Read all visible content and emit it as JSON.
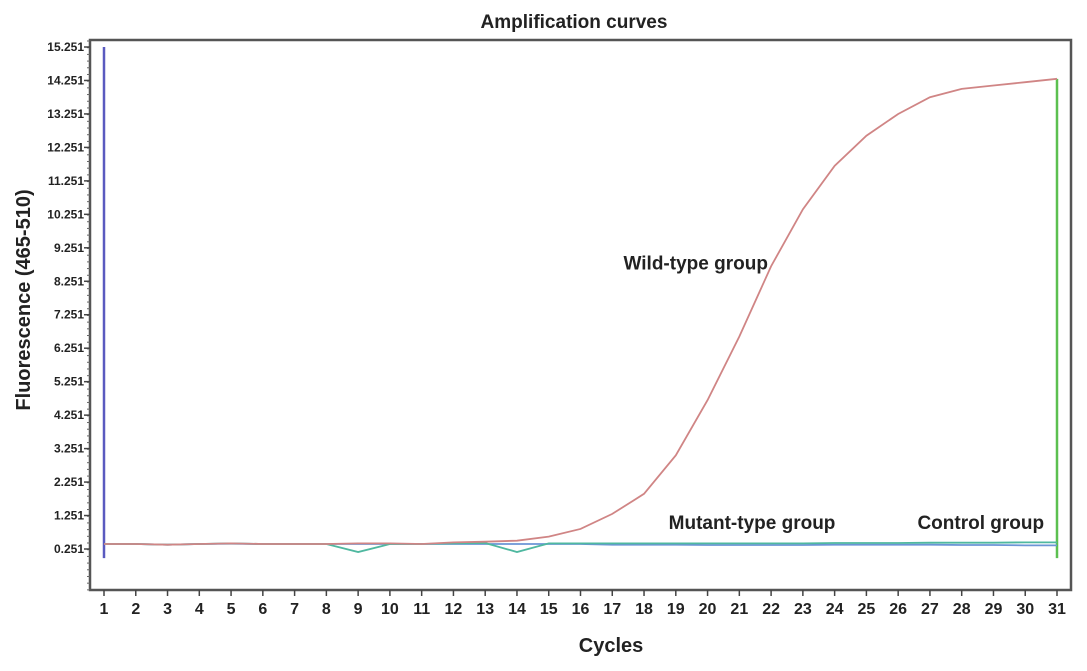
{
  "chart_data": {
    "type": "line",
    "title": "Amplification curves",
    "xlabel": "Cycles",
    "ylabel": "Fluorescence (465-510)",
    "xlim": [
      0.5,
      31.5
    ],
    "ylim": [
      -0.97,
      15.46
    ],
    "x_ticks": [
      1,
      2,
      3,
      4,
      5,
      6,
      7,
      8,
      9,
      10,
      11,
      12,
      13,
      14,
      15,
      16,
      17,
      18,
      19,
      20,
      21,
      22,
      23,
      24,
      25,
      26,
      27,
      28,
      29,
      30,
      31
    ],
    "y_ticks": [
      0.251,
      1.251,
      2.251,
      3.251,
      4.251,
      5.251,
      6.251,
      7.251,
      8.251,
      9.251,
      10.251,
      11.251,
      12.251,
      13.251,
      14.251,
      15.251
    ],
    "y_tick_labels": [
      "0.251",
      "1.251",
      "2.251",
      "3.251",
      "4.251",
      "5.251",
      "6.251",
      "7.251",
      "8.251",
      "9.251",
      "10.251",
      "11.251",
      "12.251",
      "13.251",
      "14.251",
      "15.251"
    ],
    "grid": false,
    "x": [
      1,
      2,
      3,
      4,
      5,
      6,
      7,
      8,
      9,
      10,
      11,
      12,
      13,
      14,
      15,
      16,
      17,
      18,
      19,
      20,
      21,
      22,
      23,
      24,
      25,
      26,
      27,
      28,
      29,
      30,
      31
    ],
    "series": [
      {
        "name": "Wild-type group",
        "color": "#d08585",
        "values": [
          0.4,
          0.4,
          0.38,
          0.4,
          0.42,
          0.4,
          0.4,
          0.4,
          0.42,
          0.42,
          0.4,
          0.45,
          0.47,
          0.5,
          0.62,
          0.85,
          1.3,
          1.9,
          3.05,
          4.7,
          6.6,
          8.7,
          10.4,
          11.7,
          12.6,
          13.25,
          13.75,
          14.0,
          14.1,
          14.2,
          14.3
        ]
      },
      {
        "name": "Mutant-type group",
        "color": "#4fb8a0",
        "values": [
          0.4,
          0.4,
          0.38,
          0.4,
          0.42,
          0.4,
          0.4,
          0.4,
          0.16,
          0.4,
          0.4,
          0.42,
          0.43,
          0.16,
          0.42,
          0.42,
          0.42,
          0.42,
          0.42,
          0.42,
          0.42,
          0.42,
          0.42,
          0.43,
          0.43,
          0.43,
          0.44,
          0.44,
          0.44,
          0.45,
          0.45
        ]
      },
      {
        "name": "Control group",
        "color": "#6b95d6",
        "values": [
          0.4,
          0.4,
          0.38,
          0.4,
          0.41,
          0.4,
          0.4,
          0.4,
          0.4,
          0.4,
          0.4,
          0.4,
          0.4,
          0.4,
          0.4,
          0.4,
          0.38,
          0.38,
          0.38,
          0.37,
          0.37,
          0.37,
          0.37,
          0.38,
          0.38,
          0.38,
          0.38,
          0.37,
          0.37,
          0.36,
          0.36
        ]
      }
    ],
    "markers": [
      {
        "x": 1,
        "from": -0.02,
        "to": 15.251,
        "color": "#5a5ac0"
      },
      {
        "x": 31,
        "from": -0.02,
        "to": 14.3,
        "color": "#5cc050"
      }
    ],
    "annotations": [
      {
        "text": "Wild-type group",
        "x": 21.9,
        "y": 8.6
      },
      {
        "text": "Mutant-type group",
        "x": 21.4,
        "y": 0.85
      },
      {
        "text": "Control group",
        "x": 28.6,
        "y": 0.85
      }
    ]
  }
}
